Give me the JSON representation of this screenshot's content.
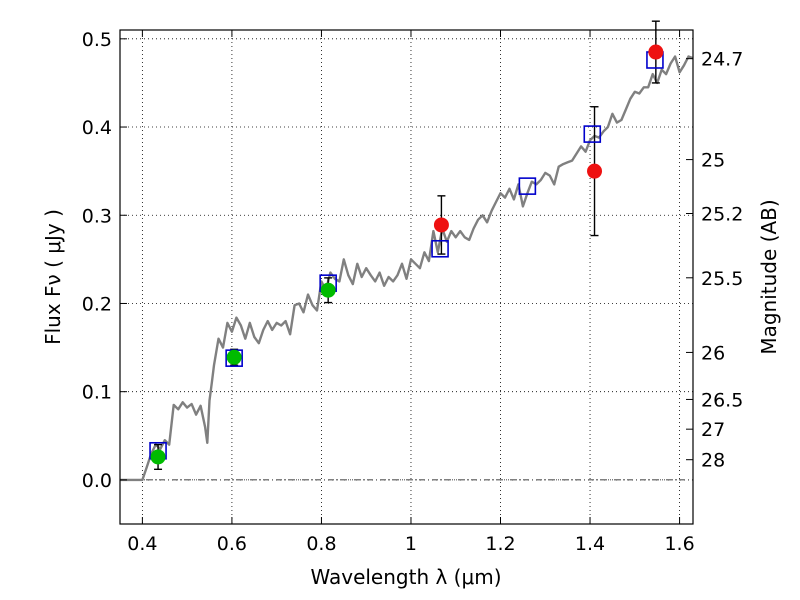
{
  "chart_data": {
    "type": "scatter",
    "title": "",
    "xlabel": "Wavelength  λ (μm)",
    "ylabel": "Flux  Fν  ( μJy )",
    "y2label": "Magnitude (AB)",
    "xlim": [
      0.35,
      1.63
    ],
    "ylim": [
      -0.05,
      0.51
    ],
    "grid": true,
    "x_ticks": [
      0.4,
      0.6,
      0.8,
      1.0,
      1.2,
      1.4,
      1.6
    ],
    "x_tick_labels": [
      "0.4",
      "0.6",
      "0.8",
      "1",
      "1.2",
      "1.4",
      "1.6"
    ],
    "y_ticks": [
      0.0,
      0.1,
      0.2,
      0.3,
      0.4,
      0.5
    ],
    "y_tick_labels": [
      "0.0",
      "0.1",
      "0.2",
      "0.3",
      "0.4",
      "0.5"
    ],
    "mag_ticks": [
      {
        "label": "24.7",
        "flux": 0.4775
      },
      {
        "label": "25",
        "flux": 0.3631
      },
      {
        "label": "25.2",
        "flux": 0.302
      },
      {
        "label": "25.5",
        "flux": 0.2291
      },
      {
        "label": "26",
        "flux": 0.1445
      },
      {
        "label": "26.5",
        "flux": 0.0912
      },
      {
        "label": "27",
        "flux": 0.0575
      },
      {
        "label": "28",
        "flux": 0.0229
      }
    ],
    "series": [
      {
        "kind": "line",
        "color": "#808080",
        "x": [
          0.35,
          0.4,
          0.41,
          0.42,
          0.43,
          0.44,
          0.45,
          0.46,
          0.47,
          0.48,
          0.49,
          0.5,
          0.51,
          0.52,
          0.53,
          0.54,
          0.545,
          0.55,
          0.555,
          0.56,
          0.57,
          0.58,
          0.59,
          0.6,
          0.61,
          0.62,
          0.63,
          0.64,
          0.65,
          0.66,
          0.67,
          0.68,
          0.69,
          0.7,
          0.71,
          0.72,
          0.73,
          0.74,
          0.75,
          0.76,
          0.77,
          0.78,
          0.79,
          0.8,
          0.81,
          0.82,
          0.83,
          0.84,
          0.85,
          0.86,
          0.87,
          0.88,
          0.89,
          0.9,
          0.91,
          0.92,
          0.93,
          0.94,
          0.95,
          0.96,
          0.97,
          0.98,
          0.99,
          1.0,
          1.01,
          1.02,
          1.03,
          1.04,
          1.05,
          1.06,
          1.07,
          1.08,
          1.09,
          1.1,
          1.11,
          1.12,
          1.13,
          1.14,
          1.15,
          1.16,
          1.17,
          1.18,
          1.19,
          1.2,
          1.21,
          1.22,
          1.23,
          1.24,
          1.25,
          1.26,
          1.27,
          1.28,
          1.29,
          1.3,
          1.31,
          1.32,
          1.33,
          1.34,
          1.35,
          1.36,
          1.37,
          1.38,
          1.39,
          1.4,
          1.41,
          1.42,
          1.43,
          1.44,
          1.45,
          1.46,
          1.47,
          1.48,
          1.49,
          1.5,
          1.51,
          1.52,
          1.53,
          1.54,
          1.55,
          1.56,
          1.57,
          1.58,
          1.59,
          1.6,
          1.61,
          1.62,
          1.63
        ],
        "y": [
          0.0,
          0.0,
          0.015,
          0.03,
          0.04,
          0.035,
          0.045,
          0.04,
          0.085,
          0.08,
          0.088,
          0.082,
          0.086,
          0.074,
          0.084,
          0.06,
          0.042,
          0.09,
          0.11,
          0.13,
          0.16,
          0.15,
          0.178,
          0.168,
          0.184,
          0.175,
          0.16,
          0.178,
          0.162,
          0.155,
          0.17,
          0.18,
          0.17,
          0.178,
          0.175,
          0.18,
          0.165,
          0.198,
          0.2,
          0.19,
          0.21,
          0.198,
          0.192,
          0.225,
          0.215,
          0.235,
          0.228,
          0.225,
          0.25,
          0.232,
          0.222,
          0.245,
          0.23,
          0.24,
          0.232,
          0.225,
          0.235,
          0.22,
          0.23,
          0.225,
          0.232,
          0.245,
          0.228,
          0.25,
          0.245,
          0.24,
          0.258,
          0.248,
          0.282,
          0.258,
          0.285,
          0.27,
          0.282,
          0.275,
          0.282,
          0.275,
          0.272,
          0.285,
          0.295,
          0.3,
          0.292,
          0.305,
          0.315,
          0.325,
          0.32,
          0.33,
          0.318,
          0.335,
          0.31,
          0.325,
          0.338,
          0.335,
          0.34,
          0.348,
          0.345,
          0.335,
          0.355,
          0.358,
          0.36,
          0.362,
          0.37,
          0.378,
          0.372,
          0.385,
          0.39,
          0.388,
          0.395,
          0.4,
          0.415,
          0.405,
          0.408,
          0.42,
          0.432,
          0.44,
          0.438,
          0.445,
          0.445,
          0.46,
          0.45,
          0.465,
          0.46,
          0.472,
          0.48,
          0.462,
          0.47,
          0.48,
          0.478
        ]
      },
      {
        "kind": "square",
        "color": "#0000cc",
        "x": [
          0.435,
          0.605,
          0.815,
          1.065,
          1.26,
          1.405,
          1.545
        ],
        "y": [
          0.033,
          0.138,
          0.223,
          0.262,
          0.333,
          0.392,
          0.476
        ]
      },
      {
        "kind": "point",
        "color": "#00bb00",
        "x": [
          0.435,
          0.605,
          0.815
        ],
        "y": [
          0.026,
          0.139,
          0.215
        ],
        "yerr": [
          0.014,
          0.009,
          0.014
        ]
      },
      {
        "kind": "point",
        "color": "#ee1111",
        "x": [
          1.068,
          1.41,
          1.547
        ],
        "y": [
          0.289,
          0.35,
          0.485
        ],
        "yerr": [
          0.033,
          0.073,
          0.035
        ]
      }
    ]
  }
}
